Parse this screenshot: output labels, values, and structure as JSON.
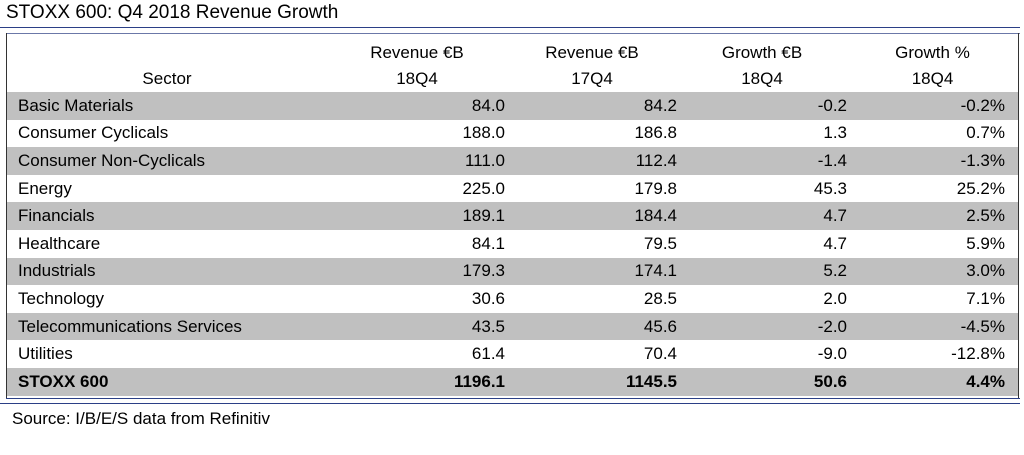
{
  "title": "STOXX 600: Q4 2018 Revenue Growth",
  "source": "Source: I/B/E/S data from Refinitiv",
  "colors": {
    "rule": "#2b3f86",
    "shaded_row": "#c0c0c0"
  },
  "chart_data": {
    "type": "table",
    "title": "STOXX 600: Q4 2018 Revenue Growth",
    "columns": [
      {
        "line1": "",
        "line2": "Sector"
      },
      {
        "line1": "Revenue €B",
        "line2": "18Q4"
      },
      {
        "line1": "Revenue €B",
        "line2": "17Q4"
      },
      {
        "line1": "Growth €B",
        "line2": "18Q4"
      },
      {
        "line1": "Growth %",
        "line2": "18Q4"
      }
    ],
    "rows": [
      {
        "sector": "Basic Materials",
        "rev_18q4": "84.0",
        "rev_17q4": "84.2",
        "growth_eur": "-0.2",
        "growth_pct": "-0.2%",
        "shaded": true
      },
      {
        "sector": "Consumer Cyclicals",
        "rev_18q4": "188.0",
        "rev_17q4": "186.8",
        "growth_eur": "1.3",
        "growth_pct": "0.7%",
        "shaded": false
      },
      {
        "sector": "Consumer Non-Cyclicals",
        "rev_18q4": "111.0",
        "rev_17q4": "112.4",
        "growth_eur": "-1.4",
        "growth_pct": "-1.3%",
        "shaded": true
      },
      {
        "sector": "Energy",
        "rev_18q4": "225.0",
        "rev_17q4": "179.8",
        "growth_eur": "45.3",
        "growth_pct": "25.2%",
        "shaded": false
      },
      {
        "sector": "Financials",
        "rev_18q4": "189.1",
        "rev_17q4": "184.4",
        "growth_eur": "4.7",
        "growth_pct": "2.5%",
        "shaded": true
      },
      {
        "sector": "Healthcare",
        "rev_18q4": "84.1",
        "rev_17q4": "79.5",
        "growth_eur": "4.7",
        "growth_pct": "5.9%",
        "shaded": false
      },
      {
        "sector": "Industrials",
        "rev_18q4": "179.3",
        "rev_17q4": "174.1",
        "growth_eur": "5.2",
        "growth_pct": "3.0%",
        "shaded": true
      },
      {
        "sector": "Technology",
        "rev_18q4": "30.6",
        "rev_17q4": "28.5",
        "growth_eur": "2.0",
        "growth_pct": "7.1%",
        "shaded": false
      },
      {
        "sector": "Telecommunications Services",
        "rev_18q4": "43.5",
        "rev_17q4": "45.6",
        "growth_eur": "-2.0",
        "growth_pct": "-4.5%",
        "shaded": true
      },
      {
        "sector": "Utilities",
        "rev_18q4": "61.4",
        "rev_17q4": "70.4",
        "growth_eur": "-9.0",
        "growth_pct": "-12.8%",
        "shaded": false
      }
    ],
    "total": {
      "sector": "STOXX 600",
      "rev_18q4": "1196.1",
      "rev_17q4": "1145.5",
      "growth_eur": "50.6",
      "growth_pct": "4.4%",
      "shaded": true
    }
  }
}
